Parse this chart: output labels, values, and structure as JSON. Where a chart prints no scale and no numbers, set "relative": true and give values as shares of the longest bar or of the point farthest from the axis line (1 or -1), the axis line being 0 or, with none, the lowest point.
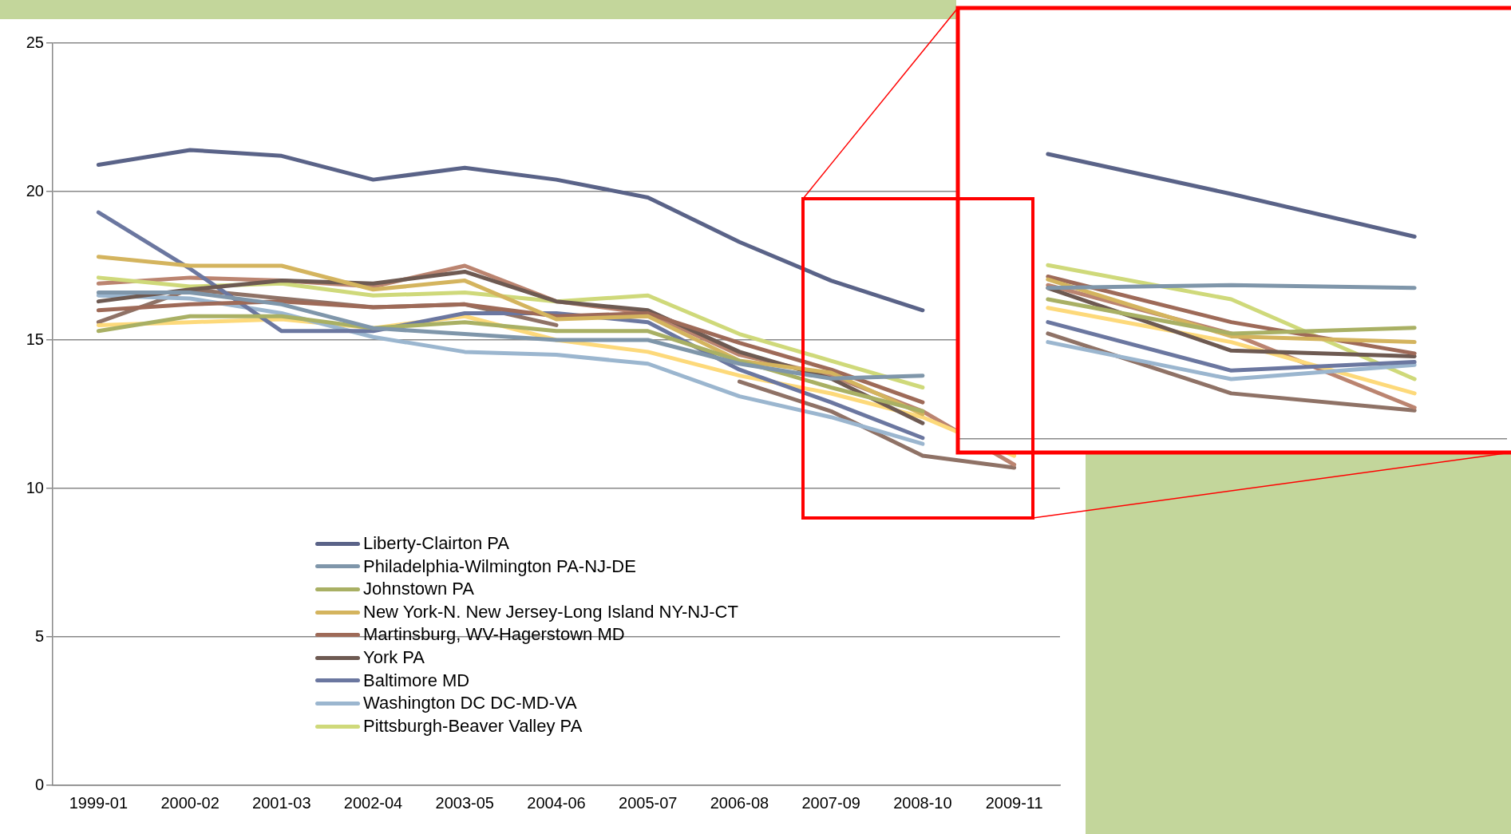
{
  "chart_data": [
    {
      "type": "line",
      "categories": [
        "1999-01",
        "2000-02",
        "2001-03",
        "2002-04",
        "2003-05",
        "2004-06",
        "2005-07",
        "2006-08",
        "2007-09",
        "2008-10",
        "2009-11"
      ],
      "ylim": [
        0,
        25
      ],
      "yticks": [
        0,
        5,
        10,
        15,
        20,
        25
      ],
      "grid": "y",
      "legend": "bottom left",
      "marker": "none",
      "line_style": "solid",
      "series": [
        {
          "name": "Liberty-Clairton PA",
          "color": "#5a6388",
          "values": [
            20.9,
            21.4,
            21.2,
            20.4,
            20.8,
            20.4,
            19.8,
            18.3,
            17.0,
            16.0,
            null
          ]
        },
        {
          "name": "Philadelphia-Wilmington PA-NJ-DE",
          "color": "#7f96aa",
          "values": [
            16.6,
            16.6,
            16.2,
            15.4,
            15.2,
            15.0,
            15.0,
            14.2,
            13.7,
            13.8,
            null
          ]
        },
        {
          "name": "Johnstown PA",
          "color": "#a9b064",
          "values": [
            15.3,
            15.8,
            15.8,
            15.4,
            15.6,
            15.3,
            15.3,
            14.3,
            13.4,
            12.6,
            null
          ]
        },
        {
          "name": "New York-N. New Jersey-Long Island NY-NJ-CT",
          "color": "#d4b45e",
          "values": [
            17.8,
            17.5,
            17.5,
            16.7,
            17.0,
            15.7,
            15.8,
            14.3,
            13.9,
            12.5,
            null
          ]
        },
        {
          "name": "Martinsburg, WV-Hagerstown MD",
          "color": "#9e6a58",
          "values": [
            16.0,
            16.2,
            16.3,
            16.1,
            16.2,
            15.8,
            15.9,
            14.9,
            14.0,
            12.9,
            null
          ]
        },
        {
          "name": "York PA",
          "color": "#6e5a52",
          "values": [
            16.3,
            16.7,
            17.0,
            16.9,
            17.3,
            16.3,
            16.0,
            14.6,
            13.7,
            12.2,
            null
          ]
        },
        {
          "name": "Baltimore MD",
          "color": "#6b77a0",
          "values": [
            19.3,
            17.4,
            15.3,
            15.3,
            15.9,
            15.9,
            15.6,
            14.0,
            12.9,
            11.7,
            null
          ]
        },
        {
          "name": "Washington DC DC-MD-VA",
          "color": "#9bb6cf",
          "values": [
            16.5,
            16.4,
            15.9,
            15.1,
            14.6,
            14.5,
            14.2,
            13.1,
            12.4,
            11.5,
            null
          ]
        },
        {
          "name": "Pittsburgh-Beaver Valley PA",
          "color": "#cfd97a",
          "values": [
            17.1,
            16.8,
            16.9,
            16.5,
            16.6,
            16.3,
            16.5,
            15.2,
            14.3,
            13.4,
            null
          ]
        },
        {
          "color": "#fdd97a",
          "values": [
            15.5,
            15.6,
            15.7,
            15.4,
            15.8,
            15.0,
            14.6,
            13.8,
            13.2,
            12.4,
            11.1
          ]
        },
        {
          "color": "#bb8470",
          "values": [
            16.9,
            17.1,
            17.0,
            16.8,
            17.5,
            16.3,
            15.9,
            14.5,
            13.8,
            12.6,
            10.8
          ]
        },
        {
          "color": "#8f7266",
          "values": [
            15.6,
            16.7,
            16.4,
            16.1,
            16.2,
            15.5,
            null,
            13.6,
            12.6,
            11.1,
            10.7
          ]
        }
      ]
    },
    {
      "type": "line",
      "categories": [
        null,
        null,
        null
      ],
      "relative": true,
      "marker": "none",
      "line_style": "solid",
      "series": [
        {
          "color": "#5a6388",
          "values": [
            1,
            0.86,
            0.71
          ]
        },
        {
          "color": "#7f96aa",
          "values": [
            0.53,
            0.54,
            0.53
          ]
        },
        {
          "color": "#a9b064",
          "values": [
            0.49,
            0.37,
            0.39
          ]
        },
        {
          "color": "#d4b45e",
          "values": [
            0.56,
            0.36,
            0.34
          ]
        },
        {
          "color": "#9e6a58",
          "values": [
            0.57,
            0.41,
            0.3
          ]
        },
        {
          "color": "#6e5a52",
          "values": [
            0.53,
            0.31,
            0.29
          ]
        },
        {
          "color": "#6b77a0",
          "values": [
            0.41,
            0.24,
            0.27
          ]
        },
        {
          "color": "#9bb6cf",
          "values": [
            0.34,
            0.21,
            0.26
          ]
        },
        {
          "color": "#cfd97a",
          "values": [
            0.61,
            0.49,
            0.21
          ]
        },
        {
          "color": "#fdd97a",
          "values": [
            0.46,
            0.34,
            0.16
          ]
        },
        {
          "color": "#bb8470",
          "values": [
            0.54,
            0.37,
            0.11
          ]
        },
        {
          "color": "#8f7266",
          "values": [
            0.37,
            0.16,
            0.1
          ]
        }
      ]
    }
  ]
}
